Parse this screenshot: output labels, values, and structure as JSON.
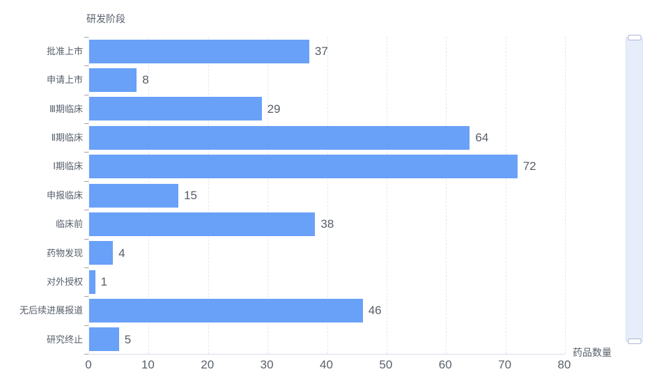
{
  "chart_data": {
    "type": "bar",
    "orientation": "horizontal",
    "y_axis_name": "研发阶段",
    "x_axis_name": "药品数量",
    "categories": [
      "批准上市",
      "申请上市",
      "Ⅲ期临床",
      "Ⅱ期临床",
      "Ⅰ期临床",
      "申报临床",
      "临床前",
      "药物发现",
      "对外授权",
      "无后续进展报道",
      "研究终止"
    ],
    "values": [
      37,
      8,
      29,
      64,
      72,
      15,
      38,
      4,
      1,
      46,
      5
    ],
    "xlim": [
      0,
      80
    ],
    "x_ticks": [
      0,
      10,
      20,
      30,
      40,
      50,
      60,
      70,
      80
    ],
    "grid": "dashed-vertical-gridlines",
    "value_label_position": "right-of-bar",
    "bar_color": "#69a0f8"
  },
  "style": {
    "bar_color": "#69a0f8",
    "gridline_color": "#e2e7f3",
    "axis_line_color": "#d8dde8",
    "tick_color": "#9ca1ab",
    "label_color": "#565e6a",
    "value_color": "#565d66",
    "slider_track_color": "#e8edfa",
    "slider_handle_border": "#aab7d6"
  },
  "data_zoom": {
    "orientation": "vertical",
    "position": "right"
  }
}
